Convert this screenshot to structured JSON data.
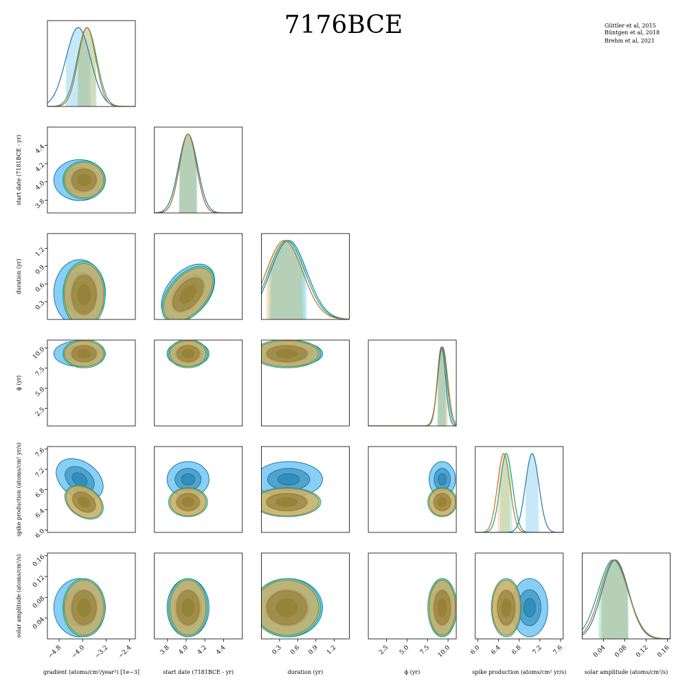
{
  "chart_data": {
    "type": "corner",
    "title": "7176BCE",
    "legend": {
      "placement": "top-right",
      "entries": [
        {
          "label": "Güttler et al, 2015",
          "color": "#1a78a8"
        },
        {
          "label": "Büntgen et al, 2018",
          "color": "#1a9c82"
        },
        {
          "label": "Brehm et al, 2021",
          "color": "#c0701e"
        }
      ]
    },
    "series_colors": {
      "gut": {
        "line": "#1a78a8",
        "fill": "#48b4f0"
      },
      "bun": {
        "line": "#1a9c82",
        "fill": "#3be0b4"
      },
      "bre": {
        "line": "#c0701e",
        "fill": "#f0a050"
      }
    },
    "parameters": [
      {
        "key": "gradient",
        "ylabel": "",
        "xlabel": "gradient (atoms/cm²/year²) [1e−3]",
        "range": [
          -5.2,
          -2.2
        ],
        "ticks": [
          "−4.8",
          "−4.0",
          "−3.2",
          "−2.4"
        ],
        "tickvals": [
          -4.8,
          -4.0,
          -3.2,
          -2.4
        ]
      },
      {
        "key": "start",
        "ylabel": "start date (7181BCE - yr)",
        "xlabel": "start date (7181BCE - yr)",
        "range": [
          3.66,
          4.6
        ],
        "ticks": [
          "3.8",
          "4.0",
          "4.2",
          "4.4"
        ],
        "tickvals": [
          3.8,
          4.0,
          4.2,
          4.4
        ]
      },
      {
        "key": "duration",
        "ylabel": "duration (yr)",
        "xlabel": "duration (yr)",
        "range": [
          0.0,
          1.45
        ],
        "ticks": [
          "0.3",
          "0.6",
          "0.9",
          "1.2"
        ],
        "tickvals": [
          0.3,
          0.6,
          0.9,
          1.2
        ]
      },
      {
        "key": "phi",
        "ylabel": "ϕ (yr)",
        "xlabel": "ϕ (yr)",
        "range": [
          0.3,
          11.0
        ],
        "ticks": [
          "2.5",
          "5.0",
          "7.5",
          "10.0"
        ],
        "tickvals": [
          2.5,
          5.0,
          7.5,
          10.0
        ]
      },
      {
        "key": "spike",
        "ylabel": "spike production (atoms/cm² yr/s)",
        "xlabel": "spike production (atoms/cm² yr/s)",
        "range": [
          5.95,
          7.65
        ],
        "ticks": [
          "6.0",
          "6.4",
          "6.8",
          "7.2",
          "7.6"
        ],
        "tickvals": [
          6.0,
          6.4,
          6.8,
          7.2,
          7.6
        ]
      },
      {
        "key": "solar",
        "ylabel": "solar amplitude (atoms/cm²/s)",
        "xlabel": "solar amplitude (atoms/cm²/s)",
        "range": [
          0.0,
          0.165
        ],
        "ticks": [
          "0.04",
          "0.08",
          "0.12",
          "0.16"
        ],
        "tickvals": [
          0.04,
          0.08,
          0.12,
          0.16
        ]
      }
    ],
    "marginals": {
      "gradient": {
        "gut": {
          "mean": -4.15,
          "sd": 0.42
        },
        "bun": {
          "mean": -3.85,
          "sd": 0.33
        },
        "bre": {
          "mean": -3.85,
          "sd": 0.3
        }
      },
      "start": {
        "gut": {
          "mean": 4.02,
          "sd": 0.1
        },
        "bun": {
          "mean": 4.02,
          "sd": 0.09
        },
        "bre": {
          "mean": 4.02,
          "sd": 0.09
        }
      },
      "duration": {
        "gut": {
          "mean": 0.45,
          "sd": 0.3
        },
        "bun": {
          "mean": 0.42,
          "sd": 0.3
        },
        "bre": {
          "mean": 0.38,
          "sd": 0.3
        }
      },
      "phi": {
        "gut": {
          "mean": 9.2,
          "sd": 0.5
        },
        "bun": {
          "mean": 9.3,
          "sd": 0.55
        },
        "bre": {
          "mean": 9.35,
          "sd": 0.6
        }
      },
      "spike": {
        "gut": {
          "mean": 7.05,
          "sd": 0.13
        },
        "bun": {
          "mean": 6.55,
          "sd": 0.12
        },
        "bre": {
          "mean": 6.5,
          "sd": 0.12
        }
      },
      "solar": {
        "gut": {
          "mean": 0.062,
          "sd": 0.025
        },
        "bun": {
          "mean": 0.058,
          "sd": 0.028
        },
        "bre": {
          "mean": 0.06,
          "sd": 0.026
        }
      }
    }
  }
}
